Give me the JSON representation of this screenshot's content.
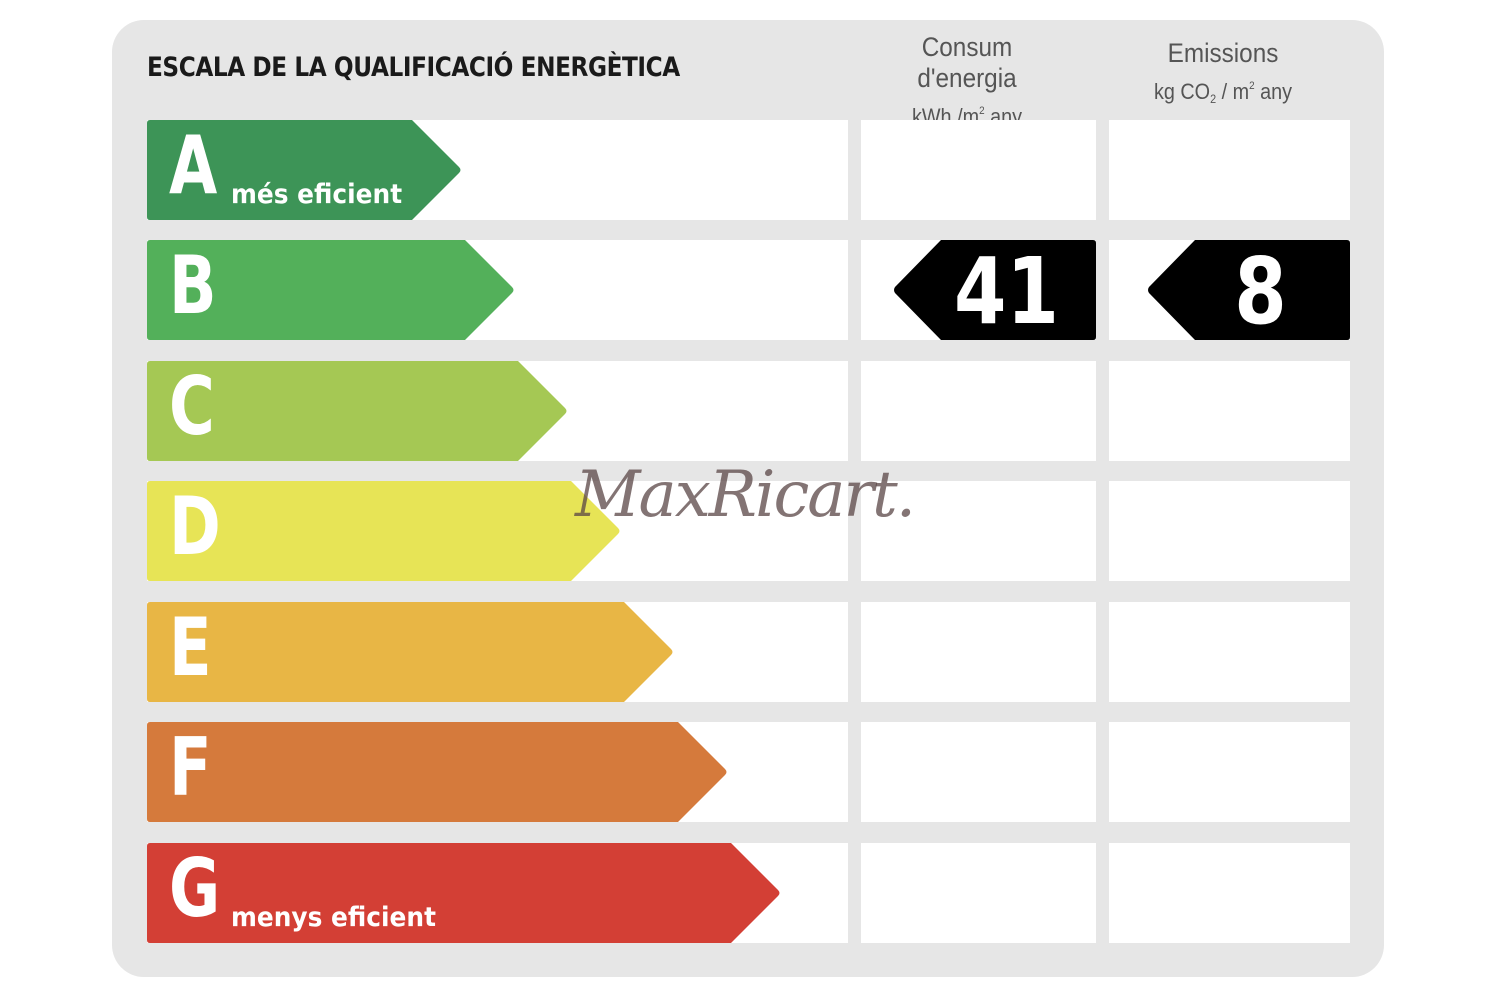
{
  "title": "ESCALA DE LA QUALIFICACIÓ ENERGÈTICA",
  "columns": {
    "consumption": {
      "line1": "Consum d'energia",
      "unit_a": "kWh /m",
      "unit_sup": "2",
      "unit_b": " any"
    },
    "emissions": {
      "line1": "Emissions",
      "unit_a": "kg CO",
      "unit_sub": "2",
      "unit_mid": " / m",
      "unit_sup": "2",
      "unit_b": " any"
    }
  },
  "classes": [
    {
      "letter": "A",
      "sublabel": "més eficient",
      "color": "#3d9457"
    },
    {
      "letter": "B",
      "sublabel": "",
      "color": "#53b05a"
    },
    {
      "letter": "C",
      "sublabel": "",
      "color": "#a5c854"
    },
    {
      "letter": "D",
      "sublabel": "",
      "color": "#e7e456"
    },
    {
      "letter": "E",
      "sublabel": "",
      "color": "#e8b645"
    },
    {
      "letter": "F",
      "sublabel": "",
      "color": "#d57a3c"
    },
    {
      "letter": "G",
      "sublabel": "menys eficient",
      "color": "#d33f35"
    }
  ],
  "rating": {
    "consumption_value": "41",
    "emissions_value": "8",
    "class": "B",
    "marker_color": "#000000"
  },
  "watermark": "MaxRicart."
}
